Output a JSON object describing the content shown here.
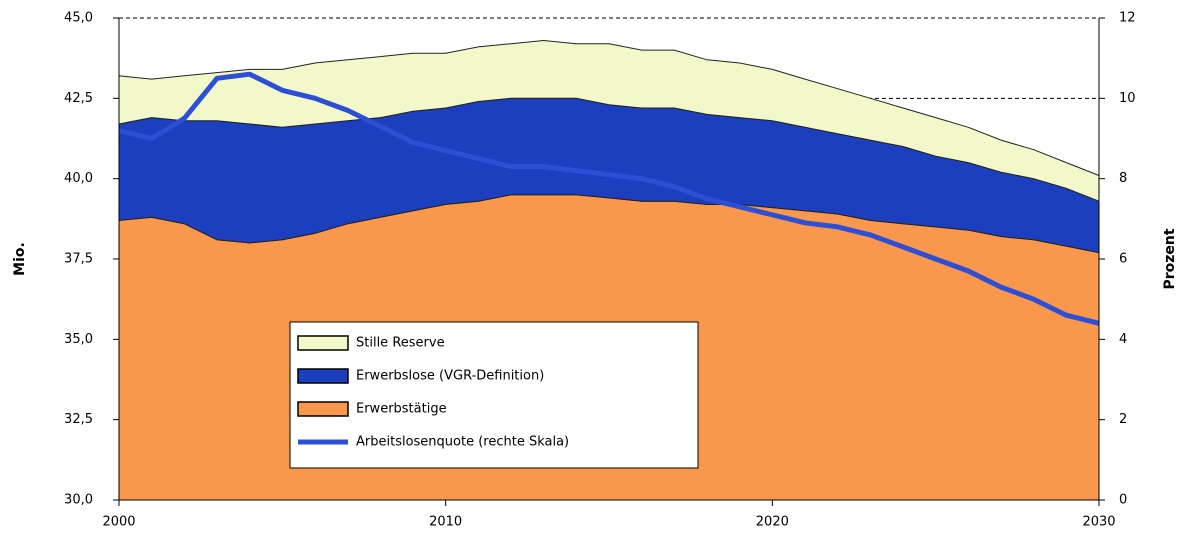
{
  "chart_data": {
    "type": "stacked_area_line",
    "x": [
      2000,
      2001,
      2002,
      2003,
      2004,
      2005,
      2006,
      2007,
      2008,
      2009,
      2010,
      2011,
      2012,
      2013,
      2014,
      2015,
      2016,
      2017,
      2018,
      2019,
      2020,
      2021,
      2022,
      2023,
      2024,
      2025,
      2026,
      2027,
      2028,
      2029,
      2030
    ],
    "series": [
      {
        "name": "Erwerbstätige",
        "color": "#f9974c",
        "values": [
          38.7,
          38.8,
          38.6,
          38.1,
          38.0,
          38.1,
          38.3,
          38.6,
          38.8,
          39.0,
          39.2,
          39.3,
          39.5,
          39.5,
          39.5,
          39.4,
          39.3,
          39.3,
          39.2,
          39.2,
          39.1,
          39.0,
          38.9,
          38.7,
          38.6,
          38.5,
          38.4,
          38.2,
          38.1,
          37.9,
          37.7
        ]
      },
      {
        "name": "Erwerbslose (VGR-Definition)",
        "color": "#1b3fbf",
        "values": [
          3.0,
          3.1,
          3.2,
          3.7,
          3.7,
          3.5,
          3.4,
          3.2,
          3.1,
          3.1,
          3.0,
          3.1,
          3.0,
          3.0,
          3.0,
          2.9,
          2.9,
          2.9,
          2.8,
          2.7,
          2.7,
          2.6,
          2.5,
          2.5,
          2.4,
          2.2,
          2.1,
          2.0,
          1.9,
          1.8,
          1.6
        ]
      },
      {
        "name": "Stille Reserve",
        "color": "#f2f8c9",
        "values": [
          1.5,
          1.2,
          1.4,
          1.5,
          1.7,
          1.8,
          1.9,
          1.9,
          1.9,
          1.8,
          1.7,
          1.7,
          1.7,
          1.8,
          1.7,
          1.9,
          1.8,
          1.8,
          1.7,
          1.7,
          1.6,
          1.5,
          1.4,
          1.3,
          1.2,
          1.2,
          1.1,
          1.0,
          0.9,
          0.8,
          0.8
        ]
      },
      {
        "name": "Arbeitslosenquote (rechte Skala)",
        "color": "#2d4fd6",
        "axis": "y2",
        "values": [
          9.2,
          9.0,
          9.5,
          10.5,
          10.6,
          10.2,
          10.0,
          9.7,
          9.3,
          8.9,
          8.7,
          8.5,
          8.3,
          8.3,
          8.2,
          8.1,
          8.0,
          7.8,
          7.5,
          7.3,
          7.1,
          6.9,
          6.8,
          6.6,
          6.3,
          6.0,
          5.7,
          5.3,
          5.0,
          4.6,
          4.4
        ]
      }
    ],
    "y_label": "Mio.",
    "y2_label": "Prozent",
    "xlim": [
      2000,
      2030
    ],
    "xticks": [
      2000,
      2010,
      2020,
      2030
    ],
    "ylim": [
      30,
      45
    ],
    "yticks": [
      {
        "value": 30,
        "label": "30,0"
      },
      {
        "value": 32.5,
        "label": "32,5"
      },
      {
        "value": 35,
        "label": "35,0"
      },
      {
        "value": 37.5,
        "label": "37,5"
      },
      {
        "value": 40,
        "label": "40,0"
      },
      {
        "value": 42.5,
        "label": "42,5"
      },
      {
        "value": 45,
        "label": "45,0"
      }
    ],
    "y2lim": [
      0,
      12
    ],
    "y2ticks": [
      0,
      2,
      4,
      6,
      8,
      10,
      12
    ],
    "grid": true
  }
}
